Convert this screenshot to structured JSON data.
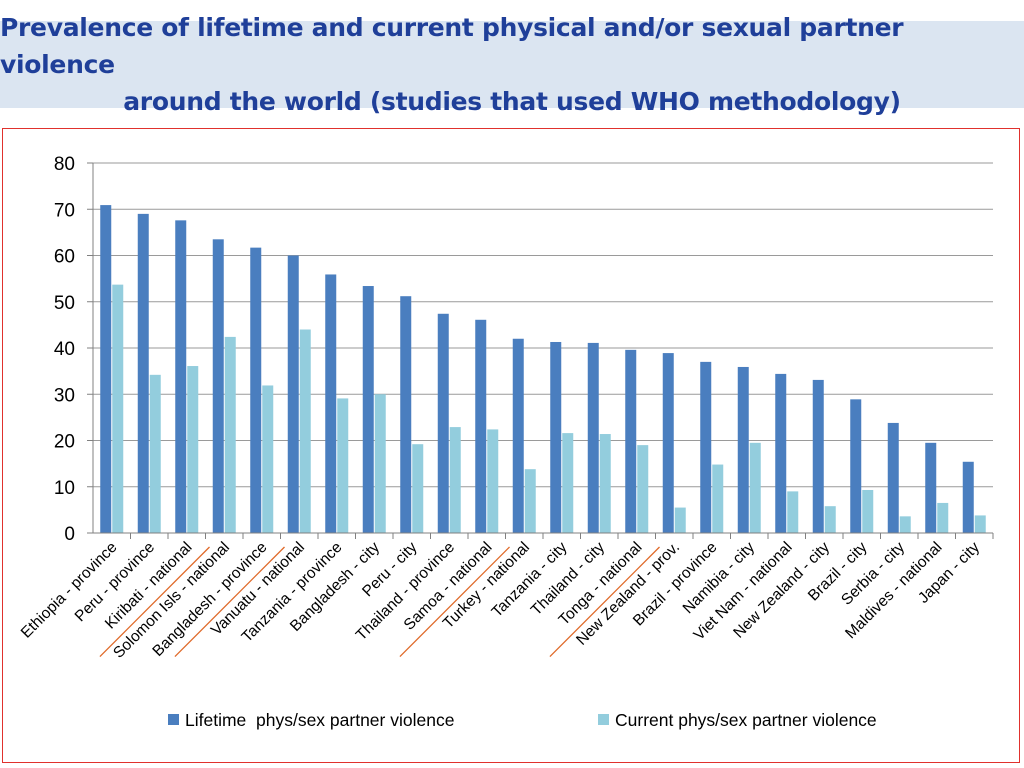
{
  "slide": {
    "title_line1": "Prevalence of lifetime and current physical and/or sexual partner violence",
    "title_line2": "around the world (studies that used WHO methodology)"
  },
  "colors": {
    "title_text": "#1f3f99",
    "title_band": "#dbe5f1",
    "frame_border": "#e0312d",
    "lifetime_bar": "#4a7ebf",
    "current_bar": "#93cddd",
    "gridline": "#9a9a9a",
    "divider_line": "#e06a2a"
  },
  "chart_data": {
    "type": "bar",
    "title": "",
    "xlabel": "",
    "ylabel": "",
    "ylim": [
      0,
      80
    ],
    "yticks": [
      0,
      10,
      20,
      30,
      40,
      50,
      60,
      70,
      80
    ],
    "grid": true,
    "legend_position": "bottom",
    "categories": [
      "Ethiopia - province",
      "Peru - province",
      "Kiribati - national",
      "Solomon Isls - national",
      "Bangladesh - province",
      "Vanuatu - national",
      "Tanzania - province",
      "Bangladesh - city",
      "Peru - city",
      "Thailand - province",
      "Samoa - national",
      "Turkey - national",
      "Tanzania - city",
      "Thailand - city",
      "Tonga - national",
      "New Zealand - prov.",
      "Brazil - province",
      "Namibia - city",
      "Viet Nam - national",
      "New Zealand - city",
      "Brazil - city",
      "Serbia - city",
      "Maldives - national",
      "Japan - city"
    ],
    "series": [
      {
        "name": "Lifetime  phys/sex partner violence",
        "color": "#4a7ebf",
        "values": [
          70.9,
          69.0,
          67.6,
          63.5,
          61.7,
          60.0,
          55.9,
          53.4,
          51.2,
          47.4,
          46.1,
          42.0,
          41.3,
          41.1,
          39.6,
          38.9,
          37.0,
          35.9,
          34.4,
          33.1,
          28.9,
          23.8,
          19.5,
          15.4
        ]
      },
      {
        "name": "Current phys/sex partner violence",
        "color": "#93cddd",
        "values": [
          53.7,
          34.2,
          36.1,
          42.4,
          31.9,
          44.0,
          29.1,
          30.0,
          19.2,
          22.9,
          22.4,
          13.8,
          21.6,
          21.4,
          19.0,
          5.5,
          14.8,
          19.5,
          9.0,
          5.8,
          9.3,
          3.6,
          6.5,
          3.8
        ]
      }
    ],
    "divider_marks_after_categories": [
      "Kiribati - national",
      "Bangladesh - province",
      "Samoa - national",
      "Tonga - national"
    ]
  }
}
